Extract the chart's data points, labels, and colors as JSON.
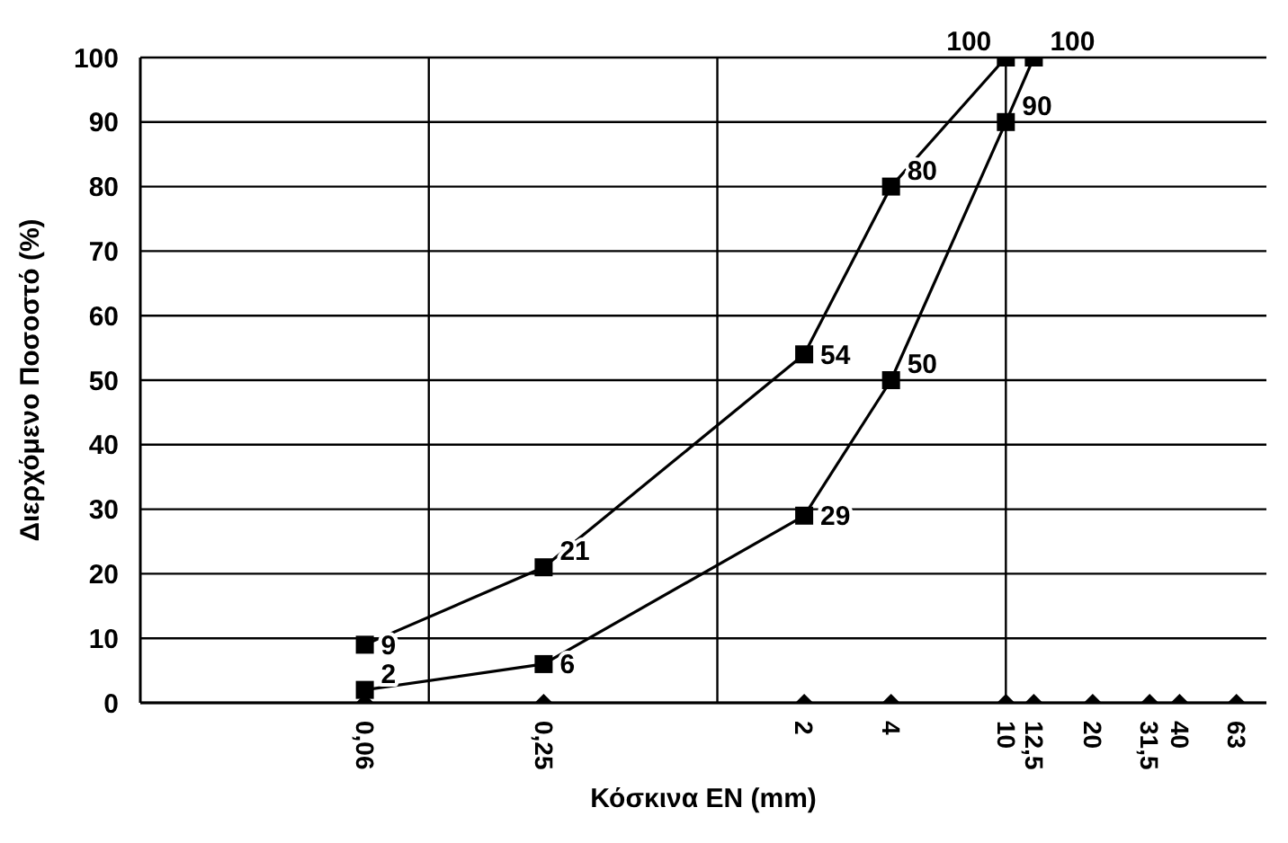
{
  "chart_data": {
    "type": "line",
    "xlabel": "Κόσκινα EN (mm)",
    "ylabel": "Διερχόμενο Ποσοστό (%)",
    "log": "x",
    "xlim": [
      0.01,
      80
    ],
    "ylim": [
      0,
      100
    ],
    "yticks": [
      0,
      10,
      20,
      30,
      40,
      50,
      60,
      70,
      80,
      90,
      100
    ],
    "xticks": [
      {
        "value": 0.06,
        "label": "0,06"
      },
      {
        "value": 0.25,
        "label": "0,25"
      },
      2,
      4,
      10,
      {
        "value": 12.5,
        "label": "12,5"
      },
      20,
      {
        "value": 31.5,
        "label": "31,5"
      },
      40,
      63
    ],
    "grid": "y",
    "marker": "square",
    "ref_lines": [
      {
        "axis": "x",
        "value": 0.1,
        "color": "#000000"
      },
      {
        "axis": "x",
        "value": 1,
        "color": "#000000"
      },
      {
        "axis": "x",
        "value": 10,
        "color": "#000000"
      }
    ],
    "series": [
      {
        "color": "#000000",
        "x": [
          0.06,
          0.25,
          2,
          4,
          10
        ],
        "values": [
          9,
          21,
          54,
          80,
          100
        ],
        "value_labels": [
          "9",
          "21",
          "54",
          "80",
          "100"
        ]
      },
      {
        "color": "#000000",
        "x": [
          0.06,
          0.25,
          2,
          4,
          10,
          12.5
        ],
        "values": [
          2,
          6,
          29,
          50,
          90,
          100
        ],
        "value_labels": [
          "2",
          "6",
          "29",
          "50",
          "90",
          "100"
        ]
      },
      {
        "type": "scatter",
        "marker": "diamond",
        "color": "#000000",
        "x": [
          0.06,
          0.25,
          2,
          4,
          10,
          12.5,
          20,
          31.5,
          40,
          63
        ],
        "values": [
          0,
          0,
          0,
          0,
          0,
          0,
          0,
          0,
          0,
          0
        ]
      }
    ]
  }
}
